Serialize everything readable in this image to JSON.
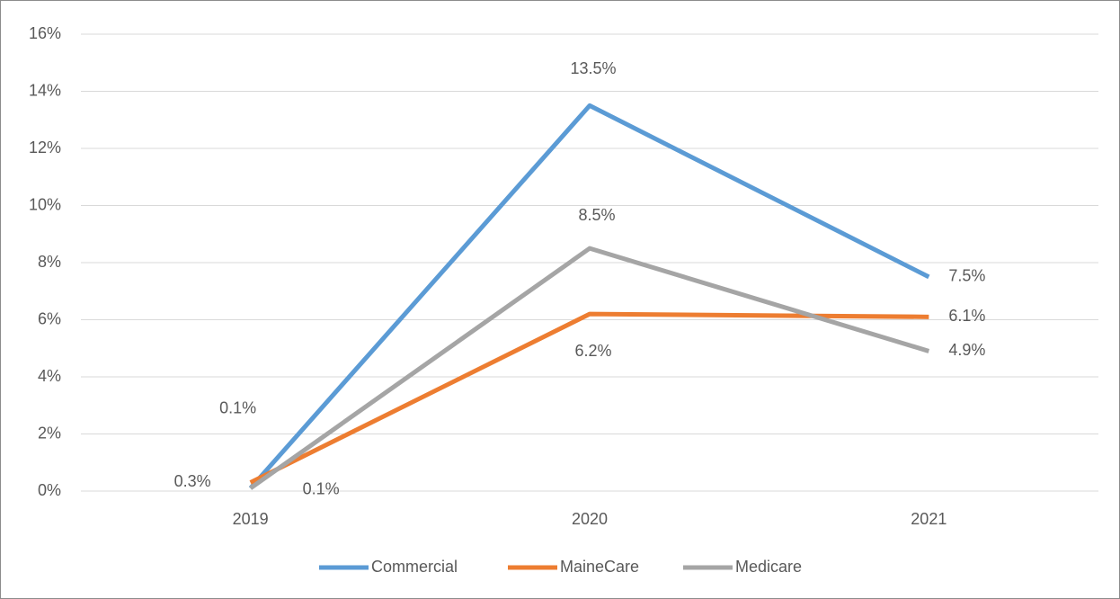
{
  "chart_data": {
    "type": "line",
    "categories": [
      "2019",
      "2020",
      "2021"
    ],
    "series": [
      {
        "name": "Commercial",
        "color": "#5b9bd5",
        "values": [
          0.1,
          13.5,
          7.5
        ],
        "value_labels": [
          "0.1%",
          "13.5%",
          "7.5%"
        ]
      },
      {
        "name": "MaineCare",
        "color": "#ed7d31",
        "values": [
          0.3,
          6.2,
          6.1
        ],
        "value_labels": [
          "0.3%",
          "6.2%",
          "6.1%"
        ]
      },
      {
        "name": "Medicare",
        "color": "#a5a5a5",
        "values": [
          0.1,
          8.5,
          4.9
        ],
        "value_labels": [
          "0.1%",
          "8.5%",
          "4.9%"
        ]
      }
    ],
    "ylim": [
      0,
      16
    ],
    "yticks": [
      {
        "value": 0,
        "label": "0%"
      },
      {
        "value": 2,
        "label": "2%"
      },
      {
        "value": 4,
        "label": "4%"
      },
      {
        "value": 6,
        "label": "6%"
      },
      {
        "value": 8,
        "label": "8%"
      },
      {
        "value": 10,
        "label": "10%"
      },
      {
        "value": 12,
        "label": "12%"
      },
      {
        "value": 14,
        "label": "14%"
      },
      {
        "value": 16,
        "label": "16%"
      }
    ],
    "grid": true,
    "legend": "bottom"
  }
}
